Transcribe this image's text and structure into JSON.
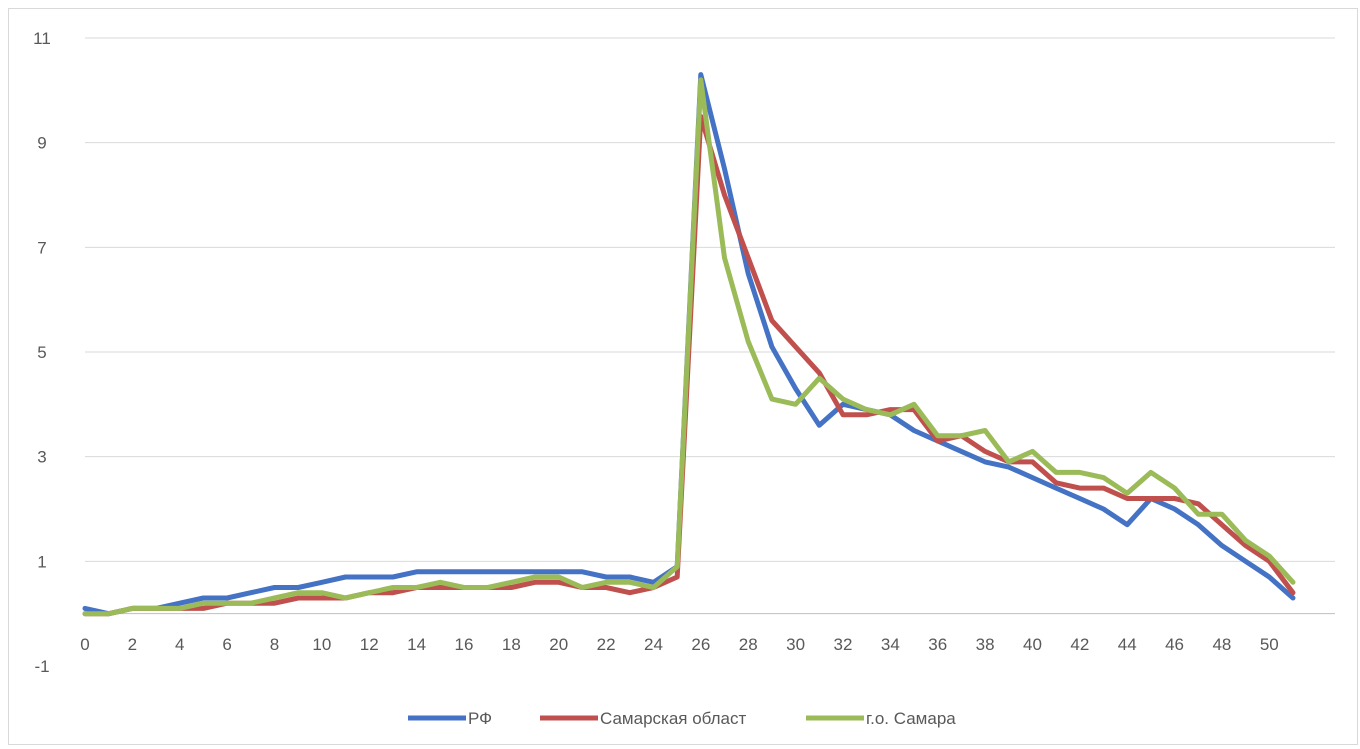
{
  "chart_data": {
    "type": "line",
    "title": "",
    "xlabel": "",
    "ylabel": "",
    "ylim": [
      -1,
      11
    ],
    "yticks": [
      -1,
      1,
      3,
      5,
      7,
      9,
      11
    ],
    "yticks_labeled": [
      1,
      3,
      5,
      7,
      9,
      11,
      -1
    ],
    "xlim": [
      0,
      51
    ],
    "xticks": [
      0,
      2,
      4,
      6,
      8,
      10,
      12,
      14,
      16,
      18,
      20,
      22,
      24,
      26,
      28,
      30,
      32,
      34,
      36,
      38,
      40,
      42,
      44,
      46,
      48,
      50
    ],
    "grid": true,
    "legend": "bottom",
    "x": [
      0,
      1,
      2,
      3,
      4,
      5,
      6,
      7,
      8,
      9,
      10,
      11,
      12,
      13,
      14,
      15,
      16,
      17,
      18,
      19,
      20,
      21,
      22,
      23,
      24,
      25,
      26,
      27,
      28,
      29,
      30,
      31,
      32,
      33,
      34,
      35,
      36,
      37,
      38,
      39,
      40,
      41,
      42,
      43,
      44,
      45,
      46,
      47,
      48,
      49,
      50,
      51
    ],
    "series": [
      {
        "name": "РФ",
        "color": "#4472c4",
        "values": [
          0.1,
          0.0,
          0.1,
          0.1,
          0.2,
          0.3,
          0.3,
          0.4,
          0.5,
          0.5,
          0.6,
          0.7,
          0.7,
          0.7,
          0.8,
          0.8,
          0.8,
          0.8,
          0.8,
          0.8,
          0.8,
          0.8,
          0.7,
          0.7,
          0.6,
          0.9,
          10.3,
          8.5,
          6.5,
          5.1,
          4.3,
          3.6,
          4.0,
          3.9,
          3.8,
          3.5,
          3.3,
          3.1,
          2.9,
          2.8,
          2.6,
          2.4,
          2.2,
          2.0,
          1.7,
          2.2,
          2.0,
          1.7,
          1.3,
          1.0,
          0.7,
          0.3
        ]
      },
      {
        "name": "Самарская област",
        "color": "#c0504d",
        "values": [
          0.0,
          0.0,
          0.1,
          0.1,
          0.1,
          0.1,
          0.2,
          0.2,
          0.2,
          0.3,
          0.3,
          0.3,
          0.4,
          0.4,
          0.5,
          0.5,
          0.5,
          0.5,
          0.5,
          0.6,
          0.6,
          0.5,
          0.5,
          0.4,
          0.5,
          0.7,
          9.5,
          8.0,
          6.8,
          5.6,
          5.1,
          4.6,
          3.8,
          3.8,
          3.9,
          3.9,
          3.3,
          3.4,
          3.1,
          2.9,
          2.9,
          2.5,
          2.4,
          2.4,
          2.2,
          2.2,
          2.2,
          2.1,
          1.7,
          1.3,
          1.0,
          0.4
        ]
      },
      {
        "name": "г.о. Самара",
        "color": "#9bbb59",
        "values": [
          0.0,
          0.0,
          0.1,
          0.1,
          0.1,
          0.2,
          0.2,
          0.2,
          0.3,
          0.4,
          0.4,
          0.3,
          0.4,
          0.5,
          0.5,
          0.6,
          0.5,
          0.5,
          0.6,
          0.7,
          0.7,
          0.5,
          0.6,
          0.6,
          0.5,
          0.9,
          10.2,
          6.8,
          5.2,
          4.1,
          4.0,
          4.5,
          4.1,
          3.9,
          3.8,
          4.0,
          3.4,
          3.4,
          3.5,
          2.9,
          3.1,
          2.7,
          2.7,
          2.6,
          2.3,
          2.7,
          2.4,
          1.9,
          1.9,
          1.4,
          1.1,
          0.6
        ]
      }
    ]
  }
}
